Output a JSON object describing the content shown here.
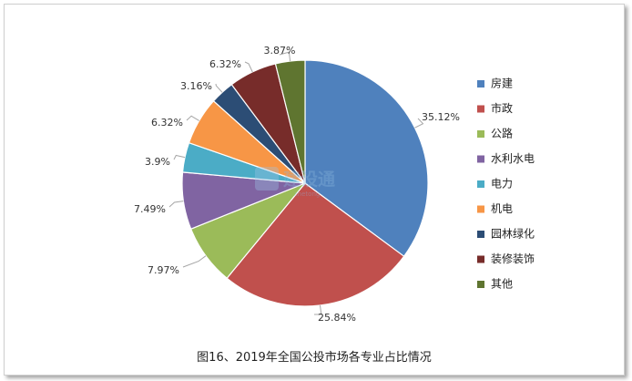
{
  "caption": "图16、2019年全国公投市场各专业占比情况",
  "watermark": {
    "text": "建设通",
    "sub": "zhetong"
  },
  "chart_data": {
    "type": "pie",
    "title": "",
    "start": "12 o'clock",
    "direction": "clockwise",
    "legend_position": "right",
    "labels": [
      "房建",
      "市政",
      "公路",
      "水利水电",
      "电力",
      "机电",
      "园林绿化",
      "装修装饰",
      "其他"
    ],
    "values": [
      35.12,
      25.84,
      7.97,
      7.49,
      3.9,
      6.32,
      3.16,
      6.32,
      3.87
    ],
    "value_labels": [
      "35.12%",
      "25.84%",
      "7.97%",
      "7.49%",
      "3.9%",
      "6.32%",
      "3.16%",
      "6.32%",
      "3.87%"
    ],
    "colors": [
      "#4f81bd",
      "#c0504d",
      "#9bbb59",
      "#8064a2",
      "#4bacc6",
      "#f79646",
      "#2c4d75",
      "#772c2a",
      "#5f7530"
    ]
  }
}
